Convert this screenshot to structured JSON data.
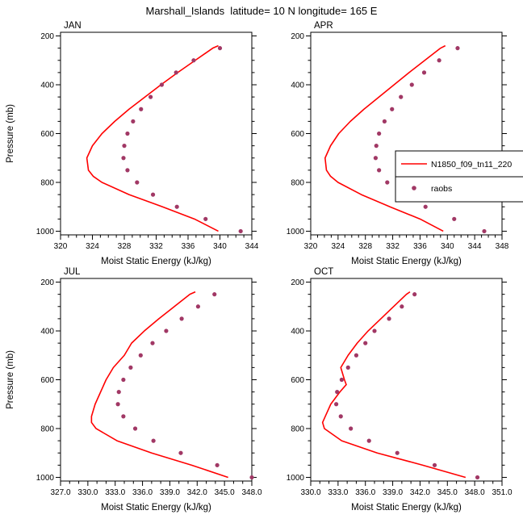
{
  "figure": {
    "title": "Marshall_Islands  latitude= 10 N longitude= 165 E",
    "xlabel": "Moist Static Energy (kJ/kg)",
    "ylabel": "Pressure (mb)"
  },
  "colors": {
    "line": "#ff0000",
    "marker": "#a13865",
    "axis": "#000000",
    "background": "#ffffff"
  },
  "legend": {
    "line_label": "N1850_f09_tn11_220",
    "marker_label": "raobs"
  },
  "yaxis": {
    "ticks": [
      200,
      400,
      600,
      800,
      1000
    ],
    "minor_step": 50,
    "top": 185,
    "bottom": 1015
  },
  "chart_data": [
    {
      "type": "line+scatter",
      "title": "JAN",
      "xlabel": "Moist Static Energy (kJ/kg)",
      "ylabel": "Pressure (mb)",
      "xlim": [
        320,
        344
      ],
      "ylim_pressure": [
        1000,
        200
      ],
      "xticks": [
        320,
        324,
        328,
        332,
        336,
        340,
        344
      ],
      "xtick_labels": [
        "320",
        "324",
        "328",
        "332",
        "336",
        "340",
        "344"
      ],
      "x_minor_step": 1,
      "series": [
        {
          "name": "N1850_f09_tn11_220",
          "style": "line",
          "pressure": [
            1000,
            950,
            900,
            850,
            800,
            775,
            750,
            700,
            650,
            600,
            550,
            500,
            450,
            400,
            350,
            300,
            250,
            240
          ],
          "mse": [
            339.8,
            336.8,
            332.8,
            328.6,
            325.2,
            324.1,
            323.5,
            323.3,
            324.0,
            325.2,
            326.8,
            328.6,
            330.6,
            332.6,
            334.7,
            336.9,
            339.1,
            339.8
          ]
        },
        {
          "name": "raobs",
          "style": "scatter",
          "pressure": [
            1000,
            950,
            900,
            850,
            800,
            750,
            700,
            650,
            600,
            550,
            500,
            450,
            400,
            350,
            300,
            250
          ],
          "mse": [
            342.6,
            338.2,
            334.6,
            331.6,
            329.6,
            328.4,
            327.9,
            328.0,
            328.4,
            329.1,
            330.1,
            331.3,
            332.7,
            334.5,
            336.7,
            340.0
          ]
        }
      ]
    },
    {
      "type": "line+scatter",
      "title": "APR",
      "xlabel": "Moist Static Energy (kJ/kg)",
      "ylabel": "Pressure (mb)",
      "xlim": [
        320,
        348
      ],
      "ylim_pressure": [
        1000,
        200
      ],
      "xticks": [
        320,
        324,
        328,
        332,
        336,
        340,
        344,
        348
      ],
      "xtick_labels": [
        "320",
        "324",
        "328",
        "332",
        "336",
        "340",
        "344",
        "348"
      ],
      "x_minor_step": 1,
      "series": [
        {
          "name": "N1850_f09_tn11_220",
          "style": "line",
          "pressure": [
            1000,
            950,
            900,
            850,
            800,
            775,
            750,
            700,
            650,
            600,
            550,
            500,
            450,
            400,
            350,
            300,
            250,
            240
          ],
          "mse": [
            339.4,
            336.0,
            331.6,
            327.4,
            324.0,
            322.9,
            322.3,
            322.1,
            322.9,
            324.1,
            325.8,
            327.8,
            330.0,
            332.2,
            334.4,
            336.7,
            339.0,
            339.7
          ]
        },
        {
          "name": "raobs",
          "style": "scatter",
          "pressure": [
            1000,
            950,
            900,
            850,
            800,
            750,
            700,
            650,
            600,
            550,
            500,
            450,
            400,
            350,
            300,
            250
          ],
          "mse": [
            345.4,
            341.0,
            336.8,
            333.4,
            331.2,
            330.0,
            329.5,
            329.6,
            330.0,
            330.8,
            331.9,
            333.2,
            334.8,
            336.6,
            338.8,
            341.5
          ]
        }
      ]
    },
    {
      "type": "line+scatter",
      "title": "JUL",
      "xlabel": "Moist Static Energy (kJ/kg)",
      "ylabel": "Pressure (mb)",
      "xlim": [
        327,
        348
      ],
      "ylim_pressure": [
        1000,
        200
      ],
      "xticks": [
        327,
        330,
        333,
        336,
        339,
        342,
        345,
        348
      ],
      "xtick_labels": [
        "327.0",
        "330.0",
        "333.0",
        "336.0",
        "339.0",
        "342.0",
        "345.0",
        "348.0"
      ],
      "x_minor_step": 1,
      "series": [
        {
          "name": "N1850_f09_tn11_220",
          "style": "line",
          "pressure": [
            1000,
            950,
            900,
            850,
            800,
            775,
            750,
            700,
            650,
            600,
            550,
            500,
            450,
            400,
            350,
            300,
            250,
            240
          ],
          "mse": [
            345.4,
            341.4,
            337.0,
            333.2,
            330.9,
            330.4,
            330.4,
            330.8,
            331.4,
            332.0,
            332.8,
            334.0,
            334.8,
            336.2,
            337.8,
            339.5,
            341.2,
            341.8
          ]
        },
        {
          "name": "raobs",
          "style": "scatter",
          "pressure": [
            1000,
            950,
            900,
            850,
            800,
            750,
            700,
            650,
            600,
            550,
            500,
            450,
            400,
            350,
            300,
            250
          ],
          "mse": [
            348.0,
            344.2,
            340.2,
            337.2,
            335.2,
            333.9,
            333.3,
            333.4,
            333.9,
            334.7,
            335.8,
            337.1,
            338.6,
            340.3,
            342.1,
            343.9
          ]
        }
      ]
    },
    {
      "type": "line+scatter",
      "title": "OCT",
      "xlabel": "Moist Static Energy (kJ/kg)",
      "ylabel": "Pressure (mb)",
      "xlim": [
        330,
        351
      ],
      "ylim_pressure": [
        1000,
        200
      ],
      "xticks": [
        330,
        333,
        336,
        339,
        342,
        345,
        348,
        351
      ],
      "xtick_labels": [
        "330.0",
        "333.0",
        "336.0",
        "339.0",
        "342.0",
        "345.0",
        "348.0",
        "351.0"
      ],
      "x_minor_step": 1,
      "series": [
        {
          "name": "N1850_f09_tn11_220",
          "style": "line",
          "pressure": [
            1000,
            950,
            900,
            850,
            800,
            775,
            750,
            700,
            650,
            620,
            600,
            550,
            500,
            450,
            400,
            350,
            300,
            250,
            240
          ],
          "mse": [
            347.0,
            342.3,
            337.3,
            333.4,
            331.5,
            331.3,
            331.6,
            332.2,
            333.2,
            333.9,
            333.7,
            333.3,
            334.1,
            335.1,
            336.3,
            337.7,
            339.1,
            340.5,
            340.9
          ]
        },
        {
          "name": "raobs",
          "style": "scatter",
          "pressure": [
            1000,
            950,
            900,
            850,
            800,
            750,
            700,
            650,
            600,
            550,
            500,
            450,
            400,
            350,
            300,
            250
          ],
          "mse": [
            348.3,
            343.6,
            339.5,
            336.4,
            334.4,
            333.3,
            332.8,
            332.9,
            333.4,
            334.1,
            335.0,
            336.0,
            337.0,
            338.6,
            340.0,
            341.4
          ]
        }
      ]
    }
  ]
}
